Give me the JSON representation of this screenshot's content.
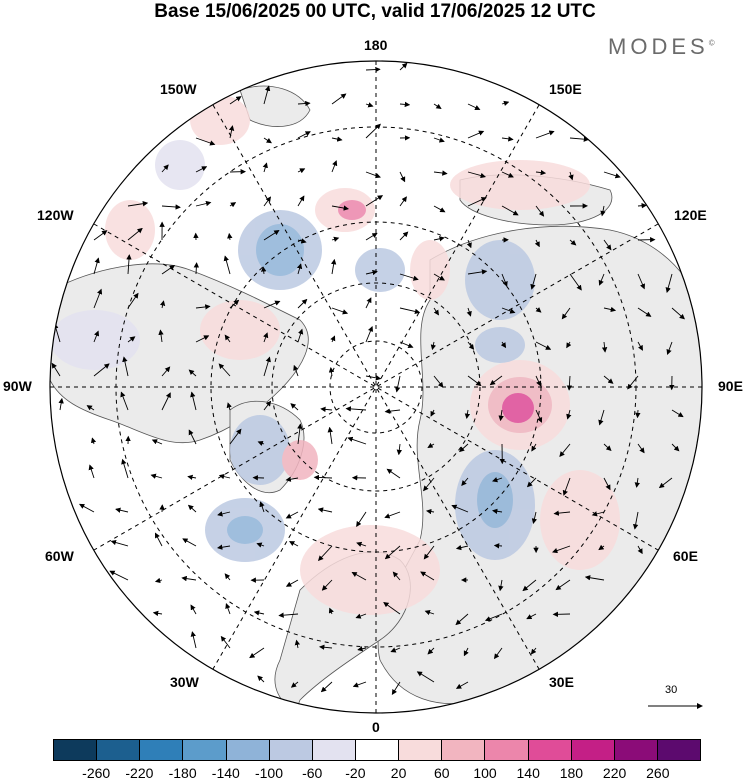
{
  "title": "Base 15/06/2025 00 UTC, valid 17/06/2025 12 UTC",
  "brand": "MODES",
  "brand_mark": "©",
  "longitude_labels": {
    "top": "180",
    "bottom": "0",
    "left": "90W",
    "right": "90E",
    "upper_left_1": "150W",
    "upper_left_2": "120W",
    "upper_right_1": "150E",
    "upper_right_2": "120E",
    "lower_left_1": "60W",
    "lower_left_2": "30W",
    "lower_right_1": "60E",
    "lower_right_2": "30E"
  },
  "vector_scale": "30",
  "colorbar": {
    "labels": [
      "-260",
      "-220",
      "-180",
      "-140",
      "-100",
      "-60",
      "-20",
      "20",
      "60",
      "100",
      "140",
      "180",
      "220",
      "260"
    ],
    "colors": [
      "#0d3a5c",
      "#1c5f8f",
      "#2f7fb8",
      "#5c9ccb",
      "#8fb3d8",
      "#bcc9e2",
      "#e3e2f0",
      "#ffffff",
      "#f8dcdc",
      "#f2b5c0",
      "#ec86ab",
      "#e04c98",
      "#c41f86",
      "#8b0c78",
      "#5c0a6e"
    ]
  },
  "colors": {
    "land": "#ebebeb",
    "ocean": "#ffffff",
    "grid": "#000000"
  }
}
